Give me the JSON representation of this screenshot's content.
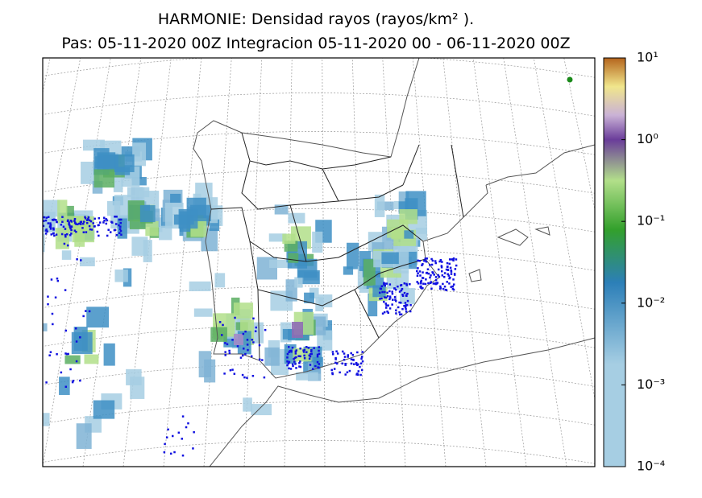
{
  "title": [
    "HARMONIE: Densidad rayos  (rayos/km² ).",
    "Pas: 05-11-2020 00Z Integracion 05-11-2020 00 - 06-11-2020 00Z"
  ],
  "colorbar": {
    "scale": "log",
    "lim": [
      0.0001,
      10
    ],
    "ticks": [
      {
        "value": 10,
        "label": "10¹"
      },
      {
        "value": 1,
        "label": "10⁰"
      },
      {
        "value": 0.1,
        "label": "10⁻¹"
      },
      {
        "value": 0.01,
        "label": "10⁻²"
      },
      {
        "value": 0.001,
        "label": "10⁻³"
      },
      {
        "value": 0.0001,
        "label": "10⁻⁴"
      }
    ]
  }
}
